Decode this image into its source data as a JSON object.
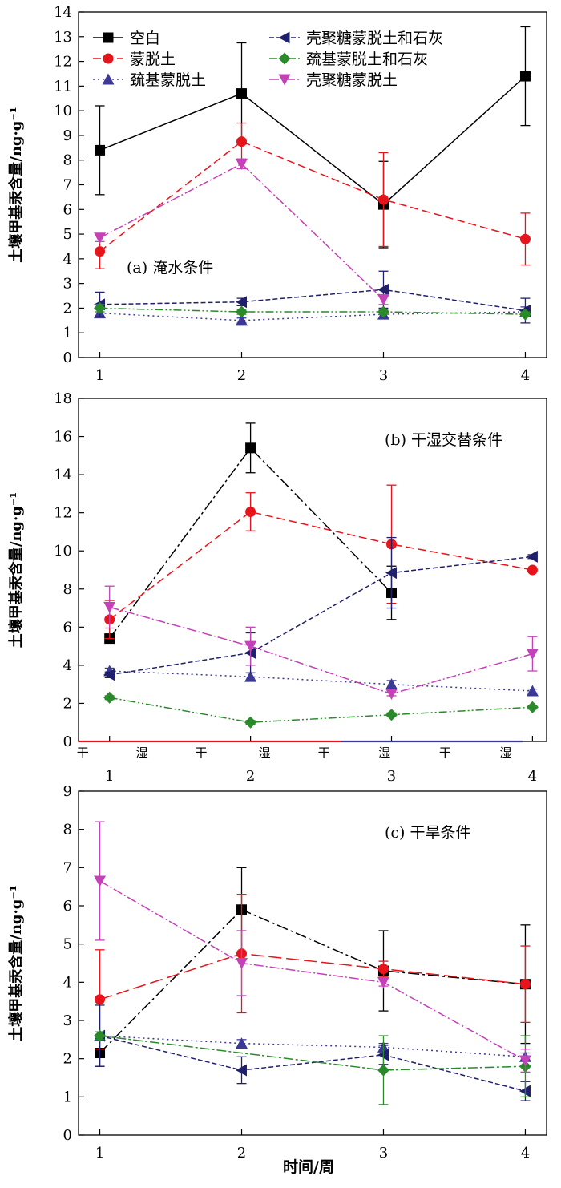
{
  "figure": {
    "x_axis_label": "时间/周",
    "styles": {
      "blank": {
        "color": "#000000",
        "marker": "square"
      },
      "mont": {
        "color": "#e8141c",
        "marker": "circle"
      },
      "thiol": {
        "color": "#3b3896",
        "marker": "triangle-up"
      },
      "cs_lime": {
        "color": "#1f1f6b",
        "marker": "triangle-left"
      },
      "thiol_lime": {
        "color": "#2a8a2a",
        "marker": "diamond"
      },
      "cs": {
        "color": "#c441b8",
        "marker": "triangle-down"
      }
    }
  },
  "chart_data": [
    {
      "type": "line",
      "annotation": "(a) 淹水条件",
      "ylabel": "土壤甲基汞含量/ng·g⁻¹",
      "x": [
        1,
        2,
        3,
        4
      ],
      "xlim": [
        0.85,
        4.15
      ],
      "ylim": [
        0,
        14
      ],
      "yticks": [
        0,
        1,
        2,
        3,
        4,
        5,
        6,
        7,
        8,
        9,
        10,
        11,
        12,
        13,
        14
      ],
      "legend": {
        "placement": "top",
        "columns": 2
      },
      "series": [
        {
          "key": "blank",
          "name": "空白",
          "values": [
            8.4,
            10.7,
            6.2,
            11.4
          ],
          "errors": [
            1.8,
            2.05,
            1.75,
            2.0
          ]
        },
        {
          "key": "mont",
          "name": "蒙脱土",
          "values": [
            4.3,
            8.75,
            6.4,
            4.8
          ],
          "errors": [
            0.7,
            0.75,
            1.9,
            1.05
          ]
        },
        {
          "key": "thiol",
          "name": "巯基蒙脱土",
          "values": [
            1.8,
            1.5,
            1.75,
            1.85
          ],
          "errors": [
            0.15,
            0.1,
            0.15,
            0.2
          ]
        },
        {
          "key": "cs_lime",
          "name": "壳聚糖蒙脱土和石灰",
          "values": [
            2.15,
            2.25,
            2.75,
            1.9
          ],
          "errors": [
            0.5,
            0.15,
            0.75,
            0.5
          ]
        },
        {
          "key": "thiol_lime",
          "name": "巯基蒙脱土和石灰",
          "values": [
            2.0,
            1.85,
            1.85,
            1.75
          ],
          "errors": [
            0.15,
            0.1,
            0.1,
            0.1
          ]
        },
        {
          "key": "cs",
          "name": "壳聚糖蒙脱土",
          "values": [
            4.85,
            7.85,
            2.35,
            null
          ],
          "errors": [
            0.15,
            0.2,
            0.2,
            null
          ]
        }
      ]
    },
    {
      "type": "line",
      "annotation": "(b) 干湿交替条件",
      "ylabel": "土壤甲基汞含量/ng·g⁻¹",
      "x": [
        1,
        2,
        3,
        4
      ],
      "xlim": [
        0.78,
        4.1
      ],
      "ylim": [
        0,
        18
      ],
      "yticks": [
        0,
        2,
        4,
        6,
        8,
        10,
        12,
        14,
        16,
        18
      ],
      "cycle_labels": [
        {
          "text": "干",
          "pos": 0.81
        },
        {
          "text": "湿",
          "pos": 1.23
        },
        {
          "text": "干",
          "pos": 1.65
        },
        {
          "text": "湿",
          "pos": 2.1
        },
        {
          "text": "干",
          "pos": 2.52
        },
        {
          "text": "湿",
          "pos": 2.95
        },
        {
          "text": "干",
          "pos": 3.38
        },
        {
          "text": "湿",
          "pos": 3.81
        }
      ],
      "series": [
        {
          "key": "blank",
          "values": [
            5.4,
            15.4,
            7.8,
            null
          ],
          "errors": [
            0.15,
            1.3,
            1.4,
            null
          ]
        },
        {
          "key": "mont",
          "values": [
            6.4,
            12.05,
            10.35,
            9.0
          ],
          "errors": [
            1.0,
            1.0,
            3.1,
            0.1
          ]
        },
        {
          "key": "thiol",
          "values": [
            3.7,
            3.4,
            3.0,
            2.65
          ],
          "errors": [
            0.15,
            0.2,
            0.2,
            0.1
          ]
        },
        {
          "key": "cs_lime",
          "values": [
            3.5,
            4.65,
            8.85,
            9.7
          ],
          "errors": [
            0.15,
            1.05,
            1.85,
            0.1
          ]
        },
        {
          "key": "thiol_lime",
          "values": [
            2.3,
            1.0,
            1.4,
            1.8
          ],
          "errors": [
            0.1,
            0.1,
            0.1,
            0.1
          ]
        },
        {
          "key": "cs",
          "values": [
            7.05,
            5.0,
            2.5,
            4.6
          ],
          "errors": [
            1.1,
            1.0,
            0.1,
            0.9
          ]
        }
      ]
    },
    {
      "type": "line",
      "annotation": "(c) 干旱条件",
      "ylabel": "土壤甲基汞含量/ng·g⁻¹",
      "xlabel": "时间/周",
      "x": [
        1,
        2,
        3,
        4
      ],
      "xlim": [
        0.85,
        4.15
      ],
      "ylim": [
        0,
        9
      ],
      "yticks": [
        0,
        1,
        2,
        3,
        4,
        5,
        6,
        7,
        8,
        9
      ],
      "series": [
        {
          "key": "blank",
          "values": [
            2.15,
            5.9,
            4.3,
            3.95
          ],
          "errors": [
            0.35,
            1.1,
            1.05,
            1.55
          ]
        },
        {
          "key": "mont",
          "values": [
            3.55,
            4.75,
            4.35,
            3.95
          ],
          "errors": [
            1.3,
            1.55,
            0.2,
            1.0
          ]
        },
        {
          "key": "thiol",
          "values": [
            2.6,
            2.4,
            2.3,
            2.05
          ],
          "errors": [
            0.1,
            0.1,
            0.1,
            0.1
          ]
        },
        {
          "key": "cs_lime",
          "values": [
            2.6,
            1.7,
            2.1,
            1.15
          ],
          "errors": [
            0.8,
            0.35,
            0.25,
            0.25
          ]
        },
        {
          "key": "thiol_lime",
          "values": [
            2.6,
            null,
            1.7,
            1.8
          ],
          "errors": [
            0.1,
            null,
            0.9,
            0.8
          ]
        },
        {
          "key": "cs",
          "values": [
            6.65,
            4.5,
            4.0,
            1.95
          ],
          "errors": [
            1.55,
            0.85,
            0.1,
            0.3
          ]
        }
      ]
    }
  ]
}
